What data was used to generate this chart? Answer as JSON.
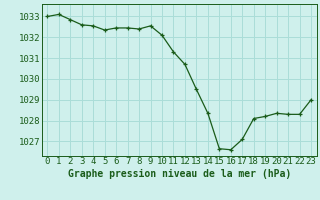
{
  "x": [
    0,
    1,
    2,
    3,
    4,
    5,
    6,
    7,
    8,
    9,
    10,
    11,
    12,
    13,
    14,
    15,
    16,
    17,
    18,
    19,
    20,
    21,
    22,
    23
  ],
  "y": [
    1033.0,
    1033.1,
    1032.85,
    1032.6,
    1032.55,
    1032.35,
    1032.45,
    1032.45,
    1032.4,
    1032.55,
    1032.1,
    1031.3,
    1030.7,
    1029.5,
    1028.35,
    1026.65,
    1026.6,
    1027.1,
    1028.1,
    1028.2,
    1028.35,
    1028.3,
    1028.3,
    1029.0
  ],
  "bg_color": "#cff0ec",
  "grid_color": "#aaddd8",
  "line_color": "#1a5c1a",
  "marker_color": "#1a5c1a",
  "ylabel_ticks": [
    1027,
    1028,
    1029,
    1030,
    1031,
    1032,
    1033
  ],
  "xlabel_label": "Graphe pression niveau de la mer (hPa)",
  "xlim": [
    -0.5,
    23.5
  ],
  "ylim": [
    1026.3,
    1033.6
  ],
  "label_color": "#1a5c1a",
  "label_fontsize": 6.5,
  "xlabel_fontsize": 7.0
}
